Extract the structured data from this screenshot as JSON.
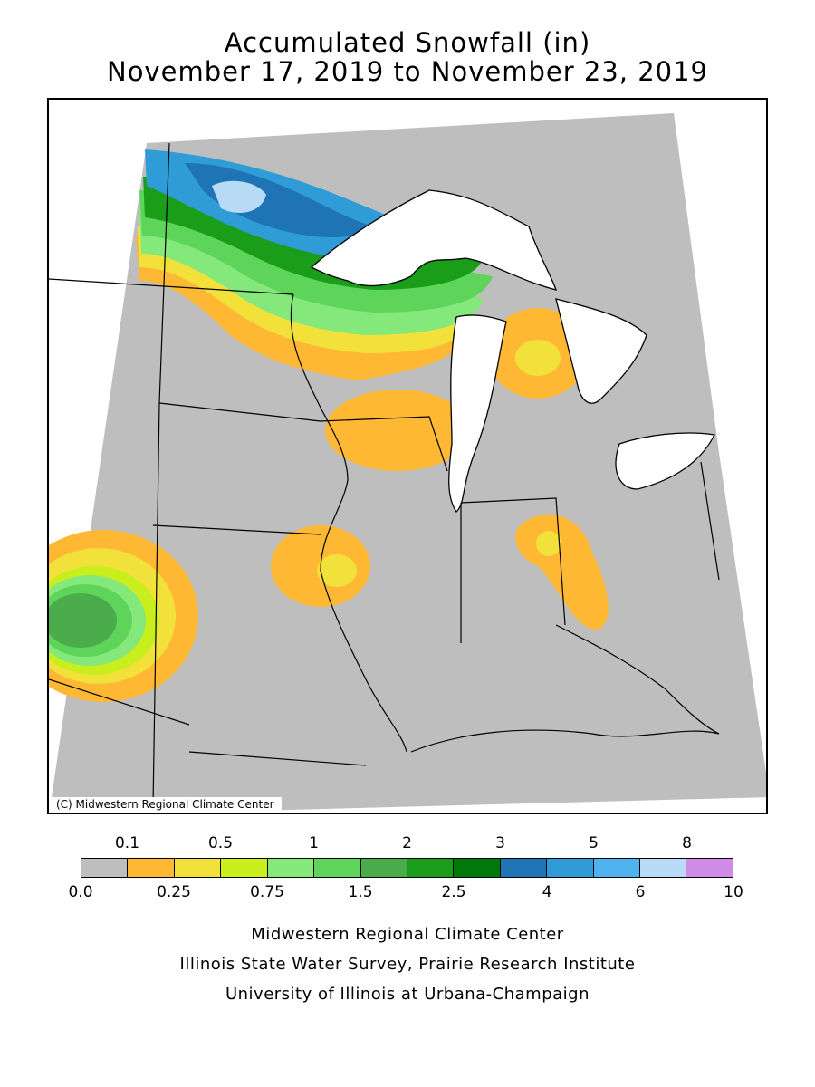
{
  "header": {
    "title_line1": "Accumulated Snowfall (in)",
    "title_line2": "November 17, 2019 to November 23, 2019"
  },
  "map": {
    "copyright": "(C) Midwestern Regional Climate Center",
    "colors": {
      "no_snow": "#bebebe",
      "water": "#ffffff",
      "border": "#000000"
    }
  },
  "legend": {
    "upper_labels": [
      "0.1",
      "0.5",
      "1",
      "2",
      "3",
      "5",
      "8"
    ],
    "lower_labels": [
      "0.0",
      "0.25",
      "0.75",
      "1.5",
      "2.5",
      "4",
      "6",
      "10"
    ],
    "colors": [
      "#bebebe",
      "#ffb833",
      "#f2e13a",
      "#c8ee1e",
      "#85e87a",
      "#5ed55a",
      "#4aac4a",
      "#1a9e1a",
      "#00780a",
      "#1e74b4",
      "#2f9cd8",
      "#4db2ee",
      "#b7dbf7",
      "#d08ae8"
    ]
  },
  "footer": {
    "line1": "Midwestern Regional Climate Center",
    "line2": "Illinois State Water Survey, Prairie Research Institute",
    "line3": "University of Illinois at Urbana-Champaign"
  }
}
